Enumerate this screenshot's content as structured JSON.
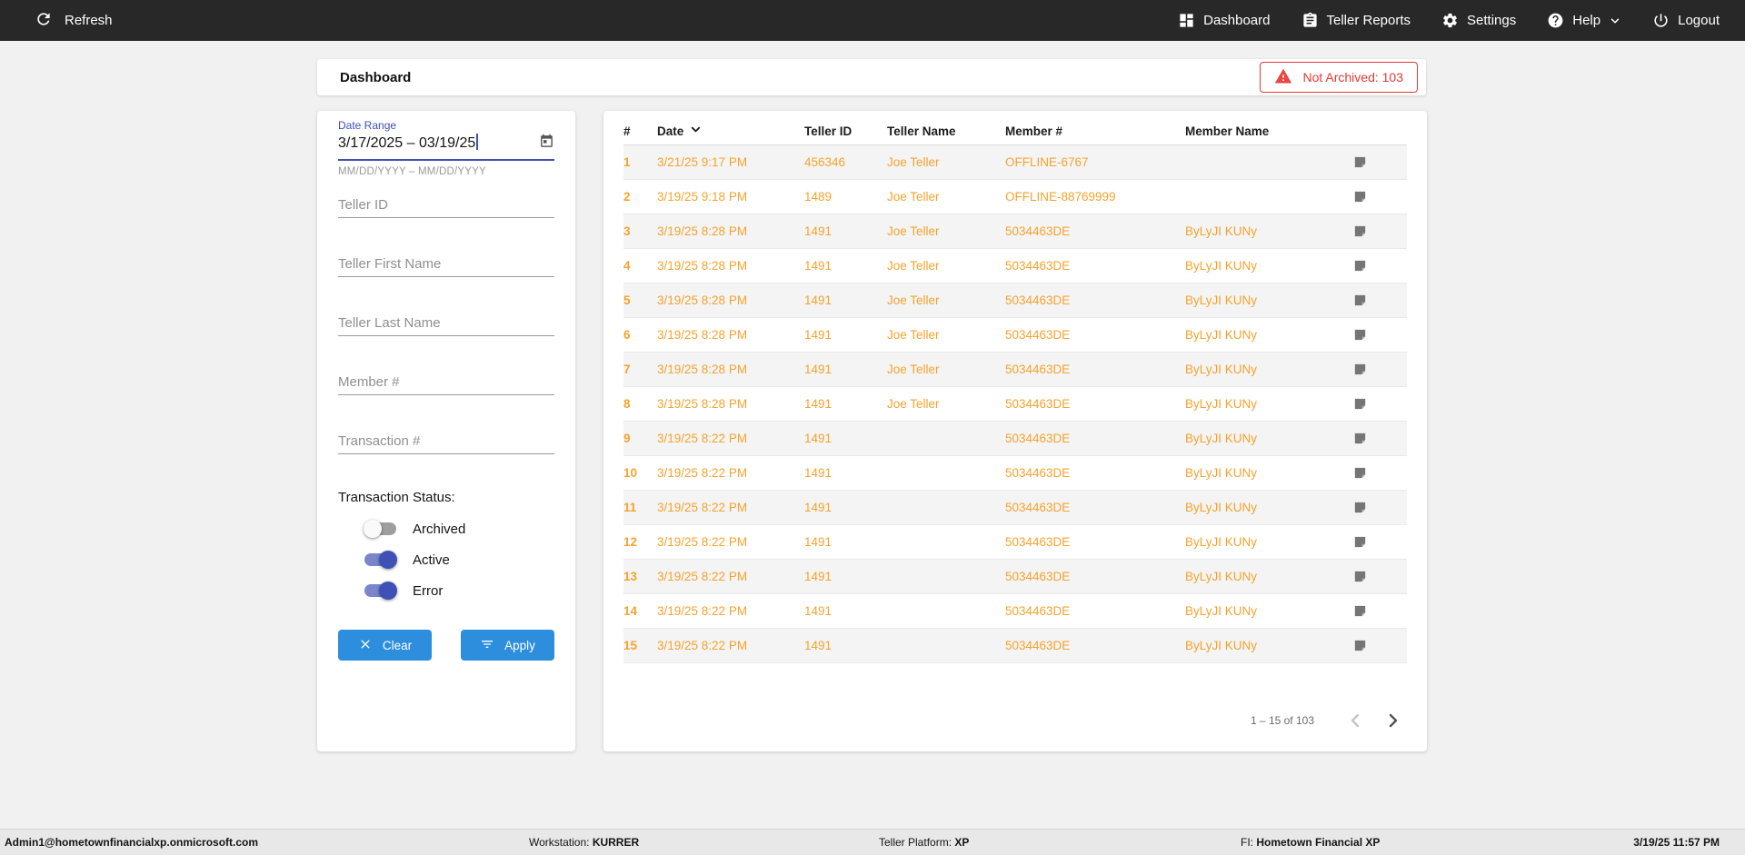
{
  "navbar": {
    "refresh_label": "Refresh",
    "items": [
      {
        "label": "Dashboard"
      },
      {
        "label": "Teller Reports"
      },
      {
        "label": "Settings"
      },
      {
        "label": "Help"
      },
      {
        "label": "Logout"
      }
    ]
  },
  "header": {
    "title": "Dashboard",
    "badge_label": "Not Archived: 103"
  },
  "filters": {
    "date_range": {
      "label": "Date Range",
      "value": "3/17/2025 – 03/19/25",
      "hint": "MM/DD/YYYY – MM/DD/YYYY"
    },
    "fields": [
      {
        "placeholder": "Teller ID"
      },
      {
        "placeholder": "Teller First Name"
      },
      {
        "placeholder": "Teller Last Name"
      },
      {
        "placeholder": "Member #"
      },
      {
        "placeholder": "Transaction #"
      }
    ],
    "status_label": "Transaction Status:",
    "toggles": [
      {
        "label": "Archived",
        "on": false
      },
      {
        "label": "Active",
        "on": true
      },
      {
        "label": "Error",
        "on": true
      }
    ],
    "clear_label": "Clear",
    "apply_label": "Apply"
  },
  "table": {
    "columns": [
      "#",
      "Date",
      "Teller ID",
      "Teller Name",
      "Member #",
      "Member Name"
    ],
    "rows": [
      {
        "num": "1",
        "date": "3/21/25 9:17 PM",
        "teller_id": "456346",
        "teller_name": "Joe Teller",
        "member_number": "OFFLINE-6767",
        "member_name": ""
      },
      {
        "num": "2",
        "date": "3/19/25 9:18 PM",
        "teller_id": "1489",
        "teller_name": "Joe Teller",
        "member_number": "OFFLINE-88769999",
        "member_name": ""
      },
      {
        "num": "3",
        "date": "3/19/25 8:28 PM",
        "teller_id": "1491",
        "teller_name": "Joe Teller",
        "member_number": "5034463DE",
        "member_name": "ByLyJI KUNy"
      },
      {
        "num": "4",
        "date": "3/19/25 8:28 PM",
        "teller_id": "1491",
        "teller_name": "Joe Teller",
        "member_number": "5034463DE",
        "member_name": "ByLyJI KUNy"
      },
      {
        "num": "5",
        "date": "3/19/25 8:28 PM",
        "teller_id": "1491",
        "teller_name": "Joe Teller",
        "member_number": "5034463DE",
        "member_name": "ByLyJI KUNy"
      },
      {
        "num": "6",
        "date": "3/19/25 8:28 PM",
        "teller_id": "1491",
        "teller_name": "Joe Teller",
        "member_number": "5034463DE",
        "member_name": "ByLyJI KUNy"
      },
      {
        "num": "7",
        "date": "3/19/25 8:28 PM",
        "teller_id": "1491",
        "teller_name": "Joe Teller",
        "member_number": "5034463DE",
        "member_name": "ByLyJI KUNy"
      },
      {
        "num": "8",
        "date": "3/19/25 8:28 PM",
        "teller_id": "1491",
        "teller_name": "Joe Teller",
        "member_number": "5034463DE",
        "member_name": "ByLyJI KUNy"
      },
      {
        "num": "9",
        "date": "3/19/25 8:22 PM",
        "teller_id": "1491",
        "teller_name": "",
        "member_number": "5034463DE",
        "member_name": "ByLyJI KUNy"
      },
      {
        "num": "10",
        "date": "3/19/25 8:22 PM",
        "teller_id": "1491",
        "teller_name": "",
        "member_number": "5034463DE",
        "member_name": "ByLyJI KUNy"
      },
      {
        "num": "11",
        "date": "3/19/25 8:22 PM",
        "teller_id": "1491",
        "teller_name": "",
        "member_number": "5034463DE",
        "member_name": "ByLyJI KUNy"
      },
      {
        "num": "12",
        "date": "3/19/25 8:22 PM",
        "teller_id": "1491",
        "teller_name": "",
        "member_number": "5034463DE",
        "member_name": "ByLyJI KUNy"
      },
      {
        "num": "13",
        "date": "3/19/25 8:22 PM",
        "teller_id": "1491",
        "teller_name": "",
        "member_number": "5034463DE",
        "member_name": "ByLyJI KUNy"
      },
      {
        "num": "14",
        "date": "3/19/25 8:22 PM",
        "teller_id": "1491",
        "teller_name": "",
        "member_number": "5034463DE",
        "member_name": "ByLyJI KUNy"
      },
      {
        "num": "15",
        "date": "3/19/25 8:22 PM",
        "teller_id": "1491",
        "teller_name": "",
        "member_number": "5034463DE",
        "member_name": "ByLyJI KUNy"
      }
    ],
    "pagination": {
      "range_label": "1 – 15 of 103"
    }
  },
  "footer": {
    "user": "Admin1@hometownfinancialxp.onmicrosoft.com",
    "workstation_label": "Workstation: ",
    "workstation_value": "KURRER",
    "platform_label": "Teller Platform: ",
    "platform_value": "XP",
    "fi_label": "FI: ",
    "fi_value": "Hometown Financial XP",
    "datetime": "3/19/25 11:57 PM"
  },
  "colors": {
    "navbar_bg": "#282828",
    "accent_blue": "#2E8EDE",
    "indigo": "#3F51B5",
    "row_orange": "#F5A32E",
    "alert_red": "#E53935"
  }
}
